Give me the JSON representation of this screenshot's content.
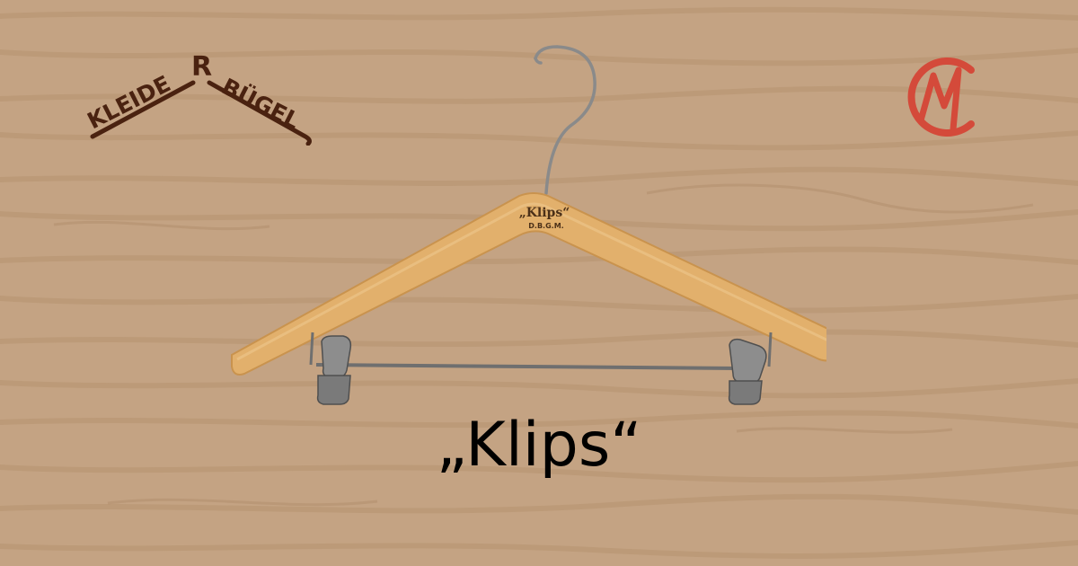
{
  "caption": "„Klips“",
  "brand_logo": {
    "text_left": "KLEIDE",
    "text_right": "BÜGEL",
    "glyph": "R",
    "color": "#4a2210"
  },
  "monogram_logo": {
    "letters": "CM",
    "color": "#d44a3a"
  },
  "hanger_imprint": {
    "line1": "„Klips“",
    "line2": "D.B.G.M."
  },
  "colors": {
    "background": "#c4a383",
    "wood_grain": "#b5926f",
    "hanger_wood": "#e2b06c",
    "metal": "#7c7c7c",
    "caption_text": "#000000"
  }
}
